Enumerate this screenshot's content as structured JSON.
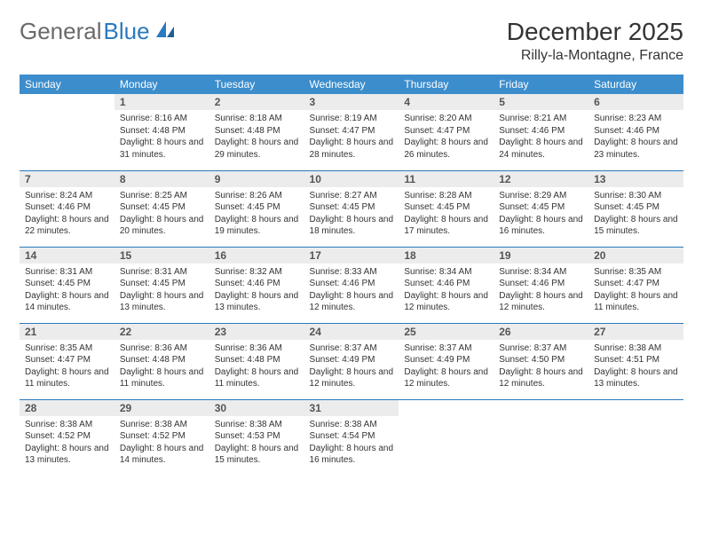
{
  "brand": {
    "part1": "General",
    "part2": "Blue"
  },
  "title": "December 2025",
  "location": "Rilly-la-Montagne, France",
  "colors": {
    "header_bg": "#3c8dcc",
    "header_text": "#ffffff",
    "daynum_bg": "#ececec",
    "rule": "#2a7ac0",
    "brand_grey": "#6a6a6a",
    "brand_blue": "#2a7ac0"
  },
  "calendar": {
    "day_headers": [
      "Sunday",
      "Monday",
      "Tuesday",
      "Wednesday",
      "Thursday",
      "Friday",
      "Saturday"
    ],
    "weeks": [
      [
        {
          "n": "",
          "sr": "",
          "ss": "",
          "dl": ""
        },
        {
          "n": "1",
          "sr": "Sunrise: 8:16 AM",
          "ss": "Sunset: 4:48 PM",
          "dl": "Daylight: 8 hours and 31 minutes."
        },
        {
          "n": "2",
          "sr": "Sunrise: 8:18 AM",
          "ss": "Sunset: 4:48 PM",
          "dl": "Daylight: 8 hours and 29 minutes."
        },
        {
          "n": "3",
          "sr": "Sunrise: 8:19 AM",
          "ss": "Sunset: 4:47 PM",
          "dl": "Daylight: 8 hours and 28 minutes."
        },
        {
          "n": "4",
          "sr": "Sunrise: 8:20 AM",
          "ss": "Sunset: 4:47 PM",
          "dl": "Daylight: 8 hours and 26 minutes."
        },
        {
          "n": "5",
          "sr": "Sunrise: 8:21 AM",
          "ss": "Sunset: 4:46 PM",
          "dl": "Daylight: 8 hours and 24 minutes."
        },
        {
          "n": "6",
          "sr": "Sunrise: 8:23 AM",
          "ss": "Sunset: 4:46 PM",
          "dl": "Daylight: 8 hours and 23 minutes."
        }
      ],
      [
        {
          "n": "7",
          "sr": "Sunrise: 8:24 AM",
          "ss": "Sunset: 4:46 PM",
          "dl": "Daylight: 8 hours and 22 minutes."
        },
        {
          "n": "8",
          "sr": "Sunrise: 8:25 AM",
          "ss": "Sunset: 4:45 PM",
          "dl": "Daylight: 8 hours and 20 minutes."
        },
        {
          "n": "9",
          "sr": "Sunrise: 8:26 AM",
          "ss": "Sunset: 4:45 PM",
          "dl": "Daylight: 8 hours and 19 minutes."
        },
        {
          "n": "10",
          "sr": "Sunrise: 8:27 AM",
          "ss": "Sunset: 4:45 PM",
          "dl": "Daylight: 8 hours and 18 minutes."
        },
        {
          "n": "11",
          "sr": "Sunrise: 8:28 AM",
          "ss": "Sunset: 4:45 PM",
          "dl": "Daylight: 8 hours and 17 minutes."
        },
        {
          "n": "12",
          "sr": "Sunrise: 8:29 AM",
          "ss": "Sunset: 4:45 PM",
          "dl": "Daylight: 8 hours and 16 minutes."
        },
        {
          "n": "13",
          "sr": "Sunrise: 8:30 AM",
          "ss": "Sunset: 4:45 PM",
          "dl": "Daylight: 8 hours and 15 minutes."
        }
      ],
      [
        {
          "n": "14",
          "sr": "Sunrise: 8:31 AM",
          "ss": "Sunset: 4:45 PM",
          "dl": "Daylight: 8 hours and 14 minutes."
        },
        {
          "n": "15",
          "sr": "Sunrise: 8:31 AM",
          "ss": "Sunset: 4:45 PM",
          "dl": "Daylight: 8 hours and 13 minutes."
        },
        {
          "n": "16",
          "sr": "Sunrise: 8:32 AM",
          "ss": "Sunset: 4:46 PM",
          "dl": "Daylight: 8 hours and 13 minutes."
        },
        {
          "n": "17",
          "sr": "Sunrise: 8:33 AM",
          "ss": "Sunset: 4:46 PM",
          "dl": "Daylight: 8 hours and 12 minutes."
        },
        {
          "n": "18",
          "sr": "Sunrise: 8:34 AM",
          "ss": "Sunset: 4:46 PM",
          "dl": "Daylight: 8 hours and 12 minutes."
        },
        {
          "n": "19",
          "sr": "Sunrise: 8:34 AM",
          "ss": "Sunset: 4:46 PM",
          "dl": "Daylight: 8 hours and 12 minutes."
        },
        {
          "n": "20",
          "sr": "Sunrise: 8:35 AM",
          "ss": "Sunset: 4:47 PM",
          "dl": "Daylight: 8 hours and 11 minutes."
        }
      ],
      [
        {
          "n": "21",
          "sr": "Sunrise: 8:35 AM",
          "ss": "Sunset: 4:47 PM",
          "dl": "Daylight: 8 hours and 11 minutes."
        },
        {
          "n": "22",
          "sr": "Sunrise: 8:36 AM",
          "ss": "Sunset: 4:48 PM",
          "dl": "Daylight: 8 hours and 11 minutes."
        },
        {
          "n": "23",
          "sr": "Sunrise: 8:36 AM",
          "ss": "Sunset: 4:48 PM",
          "dl": "Daylight: 8 hours and 11 minutes."
        },
        {
          "n": "24",
          "sr": "Sunrise: 8:37 AM",
          "ss": "Sunset: 4:49 PM",
          "dl": "Daylight: 8 hours and 12 minutes."
        },
        {
          "n": "25",
          "sr": "Sunrise: 8:37 AM",
          "ss": "Sunset: 4:49 PM",
          "dl": "Daylight: 8 hours and 12 minutes."
        },
        {
          "n": "26",
          "sr": "Sunrise: 8:37 AM",
          "ss": "Sunset: 4:50 PM",
          "dl": "Daylight: 8 hours and 12 minutes."
        },
        {
          "n": "27",
          "sr": "Sunrise: 8:38 AM",
          "ss": "Sunset: 4:51 PM",
          "dl": "Daylight: 8 hours and 13 minutes."
        }
      ],
      [
        {
          "n": "28",
          "sr": "Sunrise: 8:38 AM",
          "ss": "Sunset: 4:52 PM",
          "dl": "Daylight: 8 hours and 13 minutes."
        },
        {
          "n": "29",
          "sr": "Sunrise: 8:38 AM",
          "ss": "Sunset: 4:52 PM",
          "dl": "Daylight: 8 hours and 14 minutes."
        },
        {
          "n": "30",
          "sr": "Sunrise: 8:38 AM",
          "ss": "Sunset: 4:53 PM",
          "dl": "Daylight: 8 hours and 15 minutes."
        },
        {
          "n": "31",
          "sr": "Sunrise: 8:38 AM",
          "ss": "Sunset: 4:54 PM",
          "dl": "Daylight: 8 hours and 16 minutes."
        },
        {
          "n": "",
          "sr": "",
          "ss": "",
          "dl": ""
        },
        {
          "n": "",
          "sr": "",
          "ss": "",
          "dl": ""
        },
        {
          "n": "",
          "sr": "",
          "ss": "",
          "dl": ""
        }
      ]
    ]
  }
}
